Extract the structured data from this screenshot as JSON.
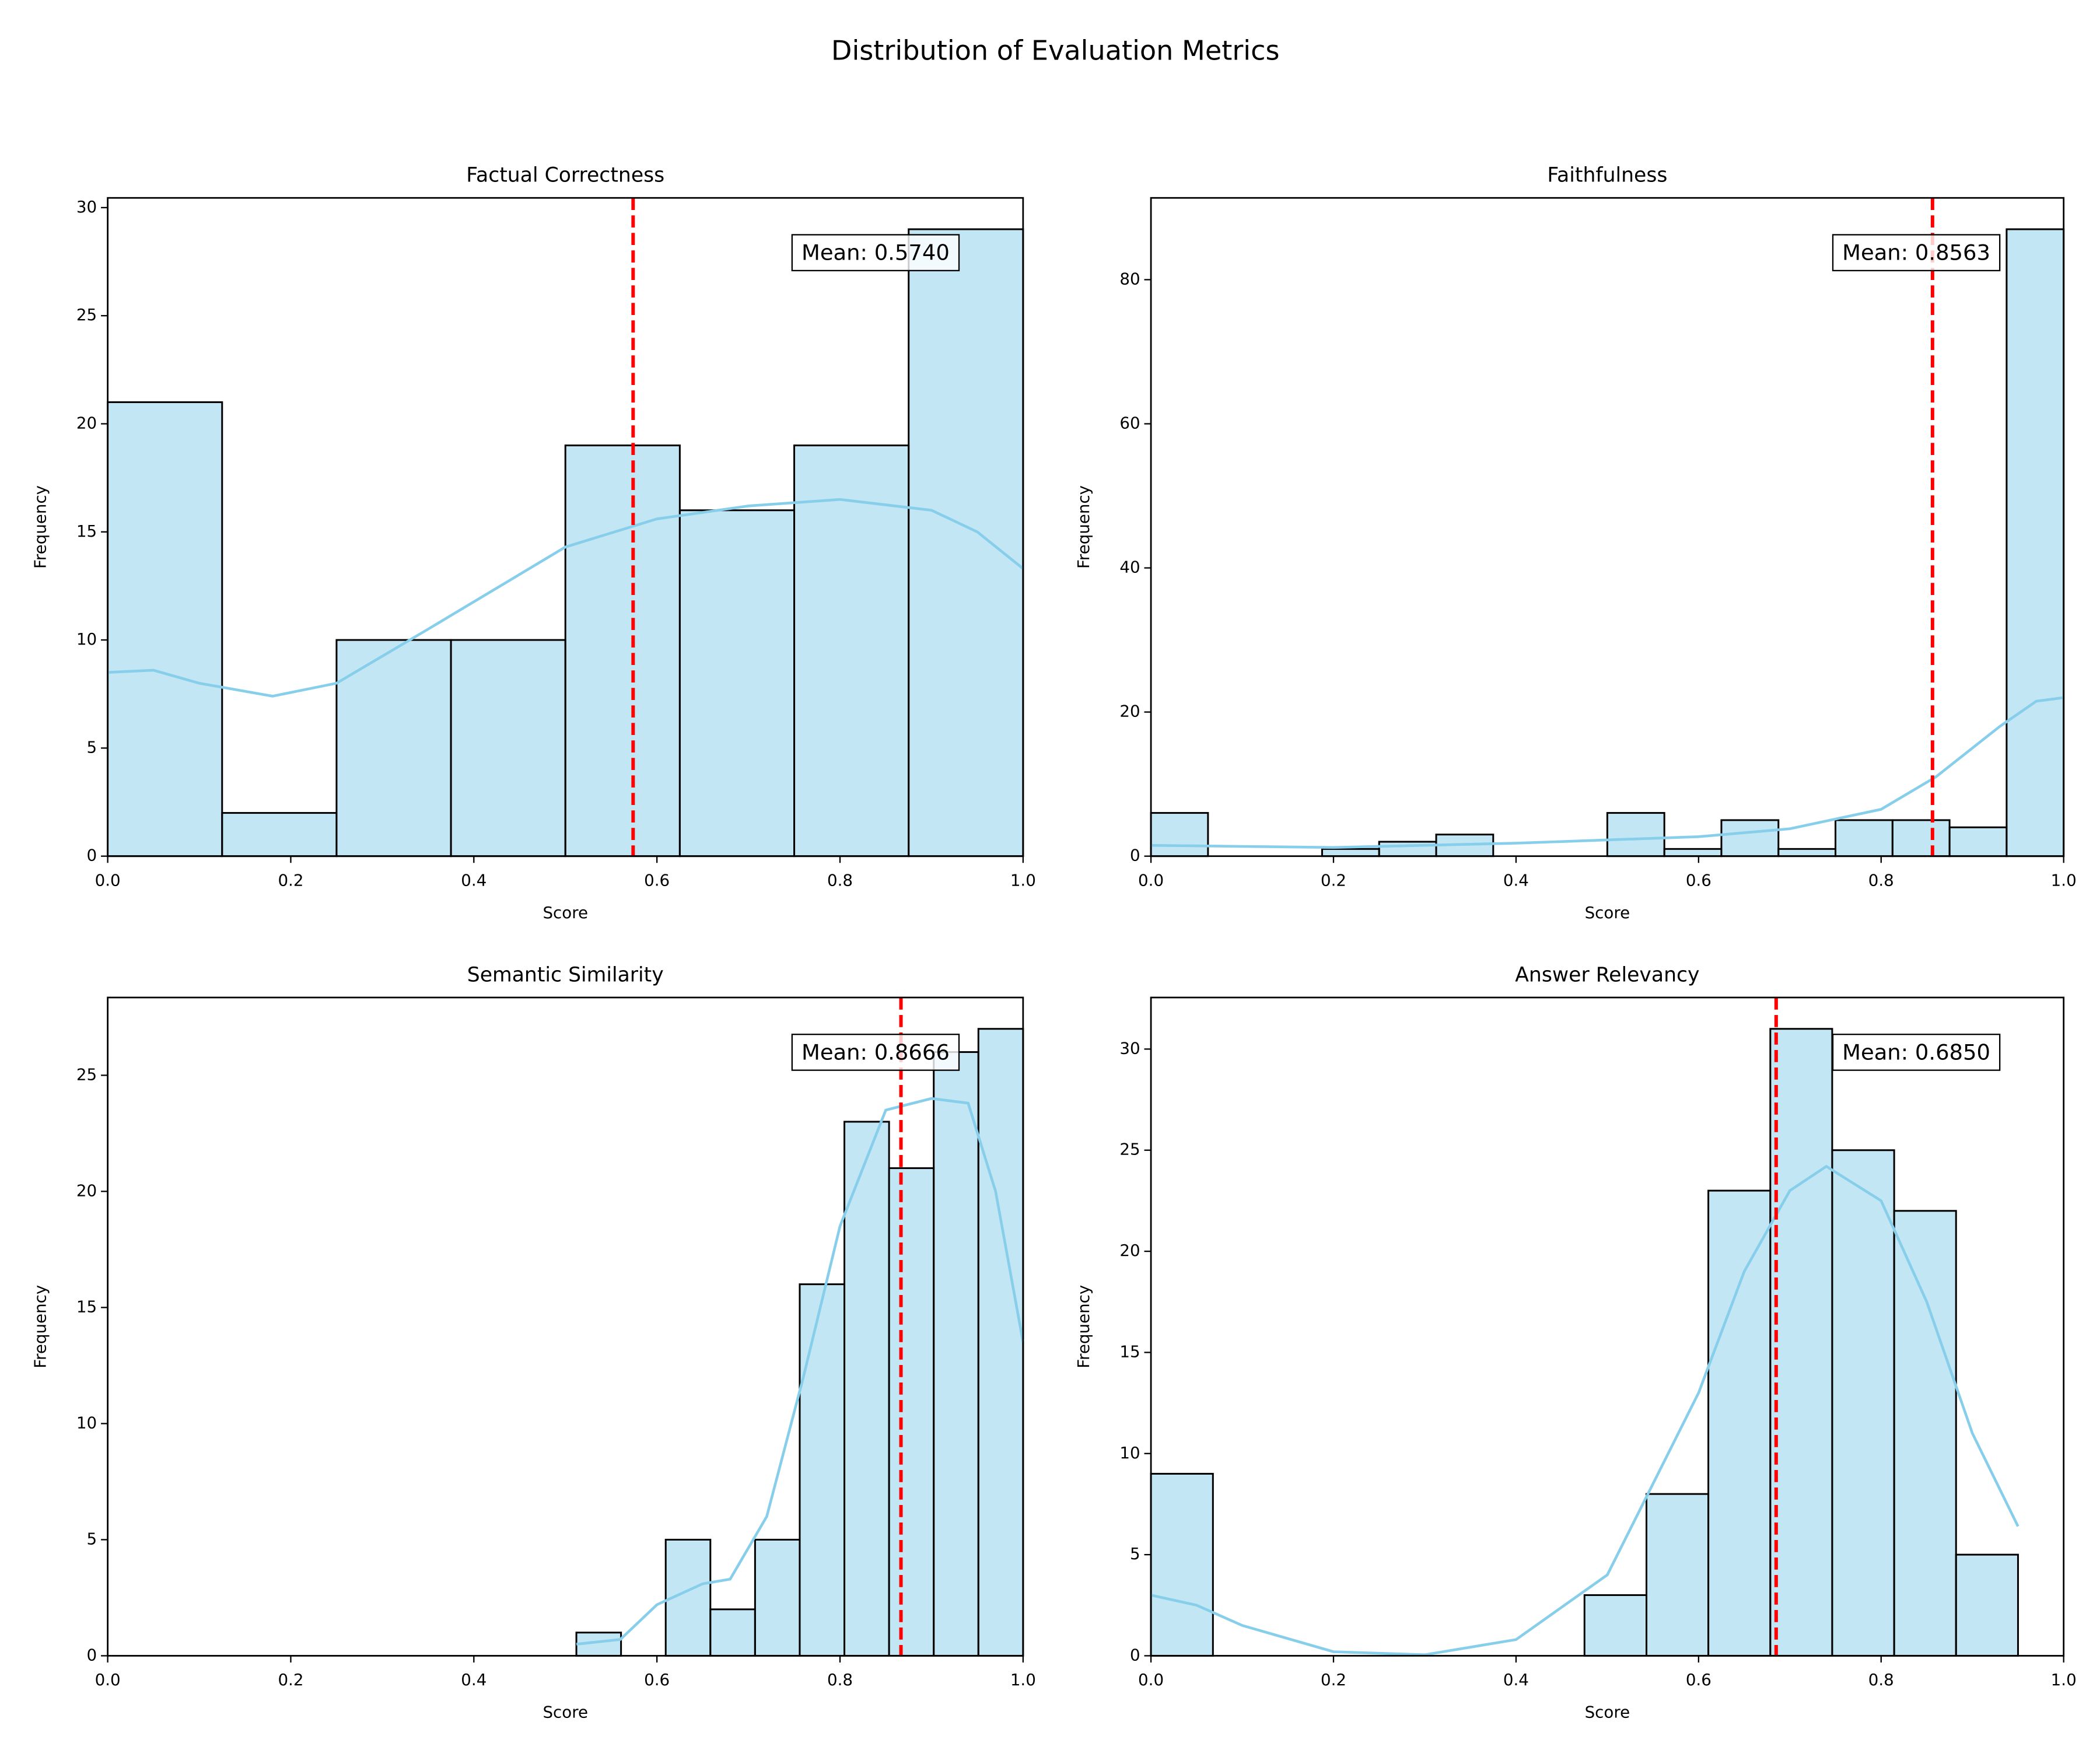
{
  "title": "Distribution of Evaluation Metrics",
  "chart_data": [
    {
      "type": "histogram",
      "title": "Factual Correctness",
      "xlabel": "Score",
      "ylabel": "Frequency",
      "bins": [
        0,
        0.125,
        0.25,
        0.375,
        0.5,
        0.625,
        0.75,
        0.875,
        1
      ],
      "values": [
        21,
        2,
        10,
        10,
        19,
        16,
        19,
        29
      ],
      "color": "#87ceeb",
      "kde_color": "#87ceeb",
      "mean_color": "#ff0000",
      "kde": {
        "x": [
          0,
          0.05,
          0.1,
          0.18,
          0.25,
          0.35,
          0.5,
          0.6,
          0.7,
          0.8,
          0.9,
          0.95,
          1
        ],
        "y": [
          8.5,
          8.6,
          8.0,
          7.4,
          8.0,
          10.5,
          14.3,
          15.6,
          16.2,
          16.5,
          16.0,
          15.0,
          13.3
        ]
      },
      "mean": {
        "value": 0.574,
        "label": "Mean: 0.5740"
      },
      "xlim": [
        0,
        1
      ],
      "ylim": [
        0,
        30.45
      ],
      "xticks": [
        {
          "value": 0,
          "label": "0.0"
        },
        0.2,
        0.4,
        0.6,
        0.8,
        {
          "value": 1,
          "label": "1.0"
        }
      ],
      "yticks": [
        0,
        5,
        10,
        15,
        20,
        25,
        30
      ]
    },
    {
      "type": "histogram",
      "title": "Faithfulness",
      "xlabel": "Score",
      "ylabel": "Frequency",
      "bins": [
        0,
        0.0625,
        0.125,
        0.1875,
        0.25,
        0.3125,
        0.375,
        0.4375,
        0.5,
        0.5625,
        0.625,
        0.6875,
        0.75,
        0.8125,
        0.875,
        0.9375,
        1
      ],
      "values": [
        6,
        0,
        0,
        1,
        2,
        3,
        0,
        0,
        6,
        1,
        5,
        1,
        5,
        5,
        4,
        87
      ],
      "color": "#87ceeb",
      "kde_color": "#87ceeb",
      "mean_color": "#ff0000",
      "kde": {
        "x": [
          0,
          0.2,
          0.4,
          0.6,
          0.7,
          0.8,
          0.86,
          0.93,
          0.97,
          1
        ],
        "y": [
          1.5,
          1.2,
          1.8,
          2.7,
          3.8,
          6.5,
          11,
          18,
          21.5,
          22
        ]
      },
      "mean": {
        "value": 0.8563,
        "label": "Mean: 0.8563"
      },
      "xlim": [
        0,
        1
      ],
      "ylim": [
        0,
        91.35
      ],
      "xticks": [
        {
          "value": 0,
          "label": "0.0"
        },
        0.2,
        0.4,
        0.6,
        0.8,
        {
          "value": 1,
          "label": "1.0"
        }
      ],
      "yticks": [
        0,
        20,
        40,
        60,
        80
      ]
    },
    {
      "type": "histogram",
      "title": "Semantic Similarity",
      "xlabel": "Score",
      "ylabel": "Frequency",
      "bins": [
        0.512,
        0.5608,
        0.6096,
        0.6584,
        0.7072,
        0.756,
        0.8048,
        0.8536,
        0.9024,
        0.9512,
        1
      ],
      "values": [
        1,
        0,
        5,
        2,
        5,
        16,
        23,
        21,
        26,
        27
      ],
      "color": "#87ceeb",
      "kde_color": "#87ceeb",
      "mean_color": "#ff0000",
      "kde": {
        "x": [
          0.512,
          0.56,
          0.6,
          0.65,
          0.68,
          0.72,
          0.76,
          0.8,
          0.85,
          0.9,
          0.94,
          0.97,
          1
        ],
        "y": [
          0.5,
          0.7,
          2.2,
          3.1,
          3.3,
          6,
          12,
          18.5,
          23.5,
          24,
          23.8,
          20,
          13.5
        ]
      },
      "mean": {
        "value": 0.8666,
        "label": "Mean: 0.8666"
      },
      "xlim": [
        0,
        1
      ],
      "ylim": [
        0,
        28.35
      ],
      "xticks": [
        {
          "value": 0,
          "label": "0.0"
        },
        0.2,
        0.4,
        0.6,
        0.8,
        {
          "value": 1,
          "label": "1.0"
        }
      ],
      "yticks": [
        0,
        5,
        10,
        15,
        20,
        25
      ]
    },
    {
      "type": "histogram",
      "title": "Answer Relevancy",
      "xlabel": "Score",
      "ylabel": "Frequency",
      "bins": [
        0,
        0.0679,
        0.1357,
        0.2036,
        0.2714,
        0.3393,
        0.4071,
        0.475,
        0.5429,
        0.6107,
        0.6786,
        0.7464,
        0.8143,
        0.8821,
        0.95
      ],
      "values": [
        9,
        0,
        0,
        0,
        0,
        0,
        0,
        3,
        8,
        23,
        31,
        25,
        22,
        5
      ],
      "color": "#87ceeb",
      "kde_color": "#87ceeb",
      "mean_color": "#ff0000",
      "kde": {
        "x": [
          0,
          0.05,
          0.1,
          0.2,
          0.3,
          0.4,
          0.5,
          0.6,
          0.65,
          0.7,
          0.74,
          0.8,
          0.85,
          0.9,
          0.95
        ],
        "y": [
          3,
          2.5,
          1.5,
          0.2,
          0.05,
          0.8,
          4,
          13,
          19,
          23,
          24.2,
          22.5,
          17.5,
          11,
          6.4
        ]
      },
      "mean": {
        "value": 0.685,
        "label": "Mean: 0.6850"
      },
      "xlim": [
        0,
        1
      ],
      "ylim": [
        0,
        32.55
      ],
      "xticks": [
        {
          "value": 0,
          "label": "0.0"
        },
        0.2,
        0.4,
        0.6,
        0.8,
        {
          "value": 1,
          "label": "1.0"
        }
      ],
      "yticks": [
        0,
        5,
        10,
        15,
        20,
        25,
        30
      ]
    }
  ]
}
